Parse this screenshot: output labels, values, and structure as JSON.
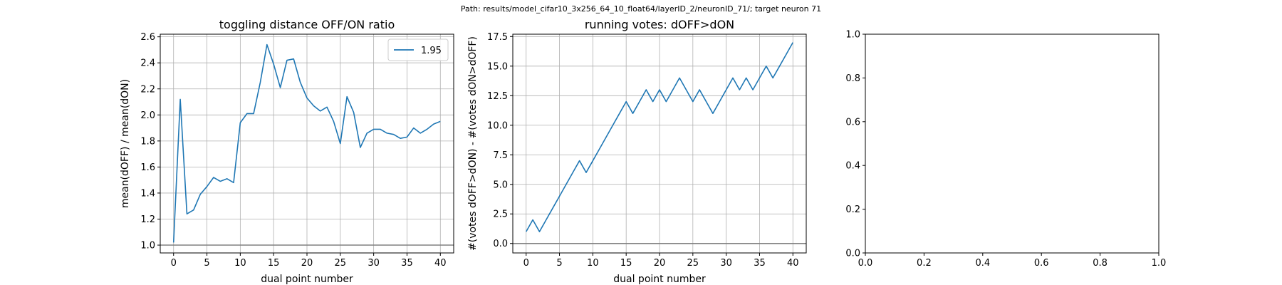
{
  "suptitle": "Path: results/model_cifar10_3x256_64_10_float64/layerID_2/neuronID_71/; target neuron 71",
  "colors": {
    "line": "#1f77b4",
    "grid": "#b0b0b0",
    "hline": "#808080"
  },
  "chart_data": [
    {
      "type": "line",
      "title": "toggling distance OFF/ON ratio",
      "xlabel": "dual point number",
      "ylabel": "mean(dOFF) / mean(dON)",
      "xlim": [
        -2,
        42
      ],
      "ylim": [
        0.94,
        2.62
      ],
      "xticks": [
        0,
        5,
        10,
        15,
        20,
        25,
        30,
        35,
        40
      ],
      "xtick_labels": [
        "0",
        "5",
        "10",
        "15",
        "20",
        "25",
        "30",
        "35",
        "40"
      ],
      "yticks": [
        1.0,
        1.2,
        1.4,
        1.6,
        1.8,
        2.0,
        2.2,
        2.4,
        2.6
      ],
      "ytick_labels": [
        "1.0",
        "1.2",
        "1.4",
        "1.6",
        "1.8",
        "2.0",
        "2.2",
        "2.4",
        "2.6"
      ],
      "grid": true,
      "hline": 1.0,
      "legend": {
        "position": "top-right",
        "entries": [
          "1.95"
        ]
      },
      "series": [
        {
          "name": "1.95",
          "x": [
            0,
            1,
            2,
            3,
            4,
            5,
            6,
            7,
            8,
            9,
            10,
            11,
            12,
            13,
            14,
            15,
            16,
            17,
            18,
            19,
            20,
            21,
            22,
            23,
            24,
            25,
            26,
            27,
            28,
            29,
            30,
            31,
            32,
            33,
            34,
            35,
            36,
            37,
            38,
            39,
            40
          ],
          "y": [
            1.02,
            2.12,
            1.24,
            1.27,
            1.39,
            1.45,
            1.52,
            1.49,
            1.51,
            1.48,
            1.94,
            2.01,
            2.01,
            2.25,
            2.54,
            2.39,
            2.21,
            2.42,
            2.43,
            2.25,
            2.13,
            2.07,
            2.03,
            2.06,
            1.95,
            1.78,
            2.14,
            2.02,
            1.75,
            1.86,
            1.89,
            1.89,
            1.86,
            1.85,
            1.82,
            1.83,
            1.9,
            1.86,
            1.89,
            1.93,
            1.95
          ]
        }
      ]
    },
    {
      "type": "line",
      "title": "running votes: dOFF>dON",
      "xlabel": "dual point number",
      "ylabel": "#(votes dOFF>dON) - #(votes dON>dOFF)",
      "xlim": [
        -2,
        42
      ],
      "ylim": [
        -0.8,
        17.7
      ],
      "xticks": [
        0,
        5,
        10,
        15,
        20,
        25,
        30,
        35,
        40
      ],
      "xtick_labels": [
        "0",
        "5",
        "10",
        "15",
        "20",
        "25",
        "30",
        "35",
        "40"
      ],
      "yticks": [
        0.0,
        2.5,
        5.0,
        7.5,
        10.0,
        12.5,
        15.0,
        17.5
      ],
      "ytick_labels": [
        "0.0",
        "2.5",
        "5.0",
        "7.5",
        "10.0",
        "12.5",
        "15.0",
        "17.5"
      ],
      "grid": true,
      "hline": 0.0,
      "series": [
        {
          "x": [
            0,
            1,
            2,
            3,
            4,
            5,
            6,
            7,
            8,
            9,
            10,
            11,
            12,
            13,
            14,
            15,
            16,
            17,
            18,
            19,
            20,
            21,
            22,
            23,
            24,
            25,
            26,
            27,
            28,
            29,
            30,
            31,
            32,
            33,
            34,
            35,
            36,
            37,
            38,
            39,
            40
          ],
          "y": [
            1,
            2,
            1,
            2,
            3,
            4,
            5,
            6,
            7,
            6,
            7,
            8,
            9,
            10,
            11,
            12,
            11,
            12,
            13,
            12,
            13,
            12,
            13,
            14,
            13,
            12,
            13,
            12,
            11,
            12,
            13,
            14,
            13,
            14,
            13,
            14,
            15,
            14,
            15,
            16,
            17
          ]
        }
      ]
    },
    {
      "type": "line",
      "title": "",
      "xlabel": "",
      "ylabel": "",
      "xlim": [
        0,
        1
      ],
      "ylim": [
        0,
        1
      ],
      "xticks": [
        0,
        0.2,
        0.4,
        0.6,
        0.8,
        1.0
      ],
      "xtick_labels": [
        "0.0",
        "0.2",
        "0.4",
        "0.6",
        "0.8",
        "1.0"
      ],
      "yticks": [
        0,
        0.2,
        0.4,
        0.6,
        0.8,
        1.0
      ],
      "ytick_labels": [
        "0.0",
        "0.2",
        "0.4",
        "0.6",
        "0.8",
        "1.0"
      ],
      "grid": false,
      "series": []
    }
  ]
}
